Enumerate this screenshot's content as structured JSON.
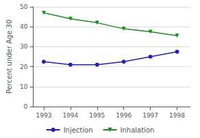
{
  "chart_data": {
    "type": "line",
    "ylabel": "Percent under Age 30",
    "x": [
      1993,
      1994,
      1995,
      1996,
      1997,
      1998
    ],
    "series": [
      {
        "name": "Injection",
        "color": "#2222aa",
        "marker": "circle",
        "values": [
          22.5,
          21.0,
          21.0,
          22.5,
          25.0,
          27.5
        ]
      },
      {
        "name": "Inhalation",
        "color": "#228822",
        "marker": "triangle_down",
        "values": [
          47.0,
          44.0,
          42.0,
          39.0,
          37.5,
          35.5
        ]
      }
    ],
    "xlim": [
      1992.6,
      1998.5
    ],
    "xticks": [
      1993,
      1994,
      1995,
      1996,
      1997,
      1998
    ],
    "ylim": [
      0,
      50
    ],
    "yticks": [
      0,
      10,
      20,
      30,
      40,
      50
    ],
    "grid": true,
    "legend": "bottom"
  }
}
